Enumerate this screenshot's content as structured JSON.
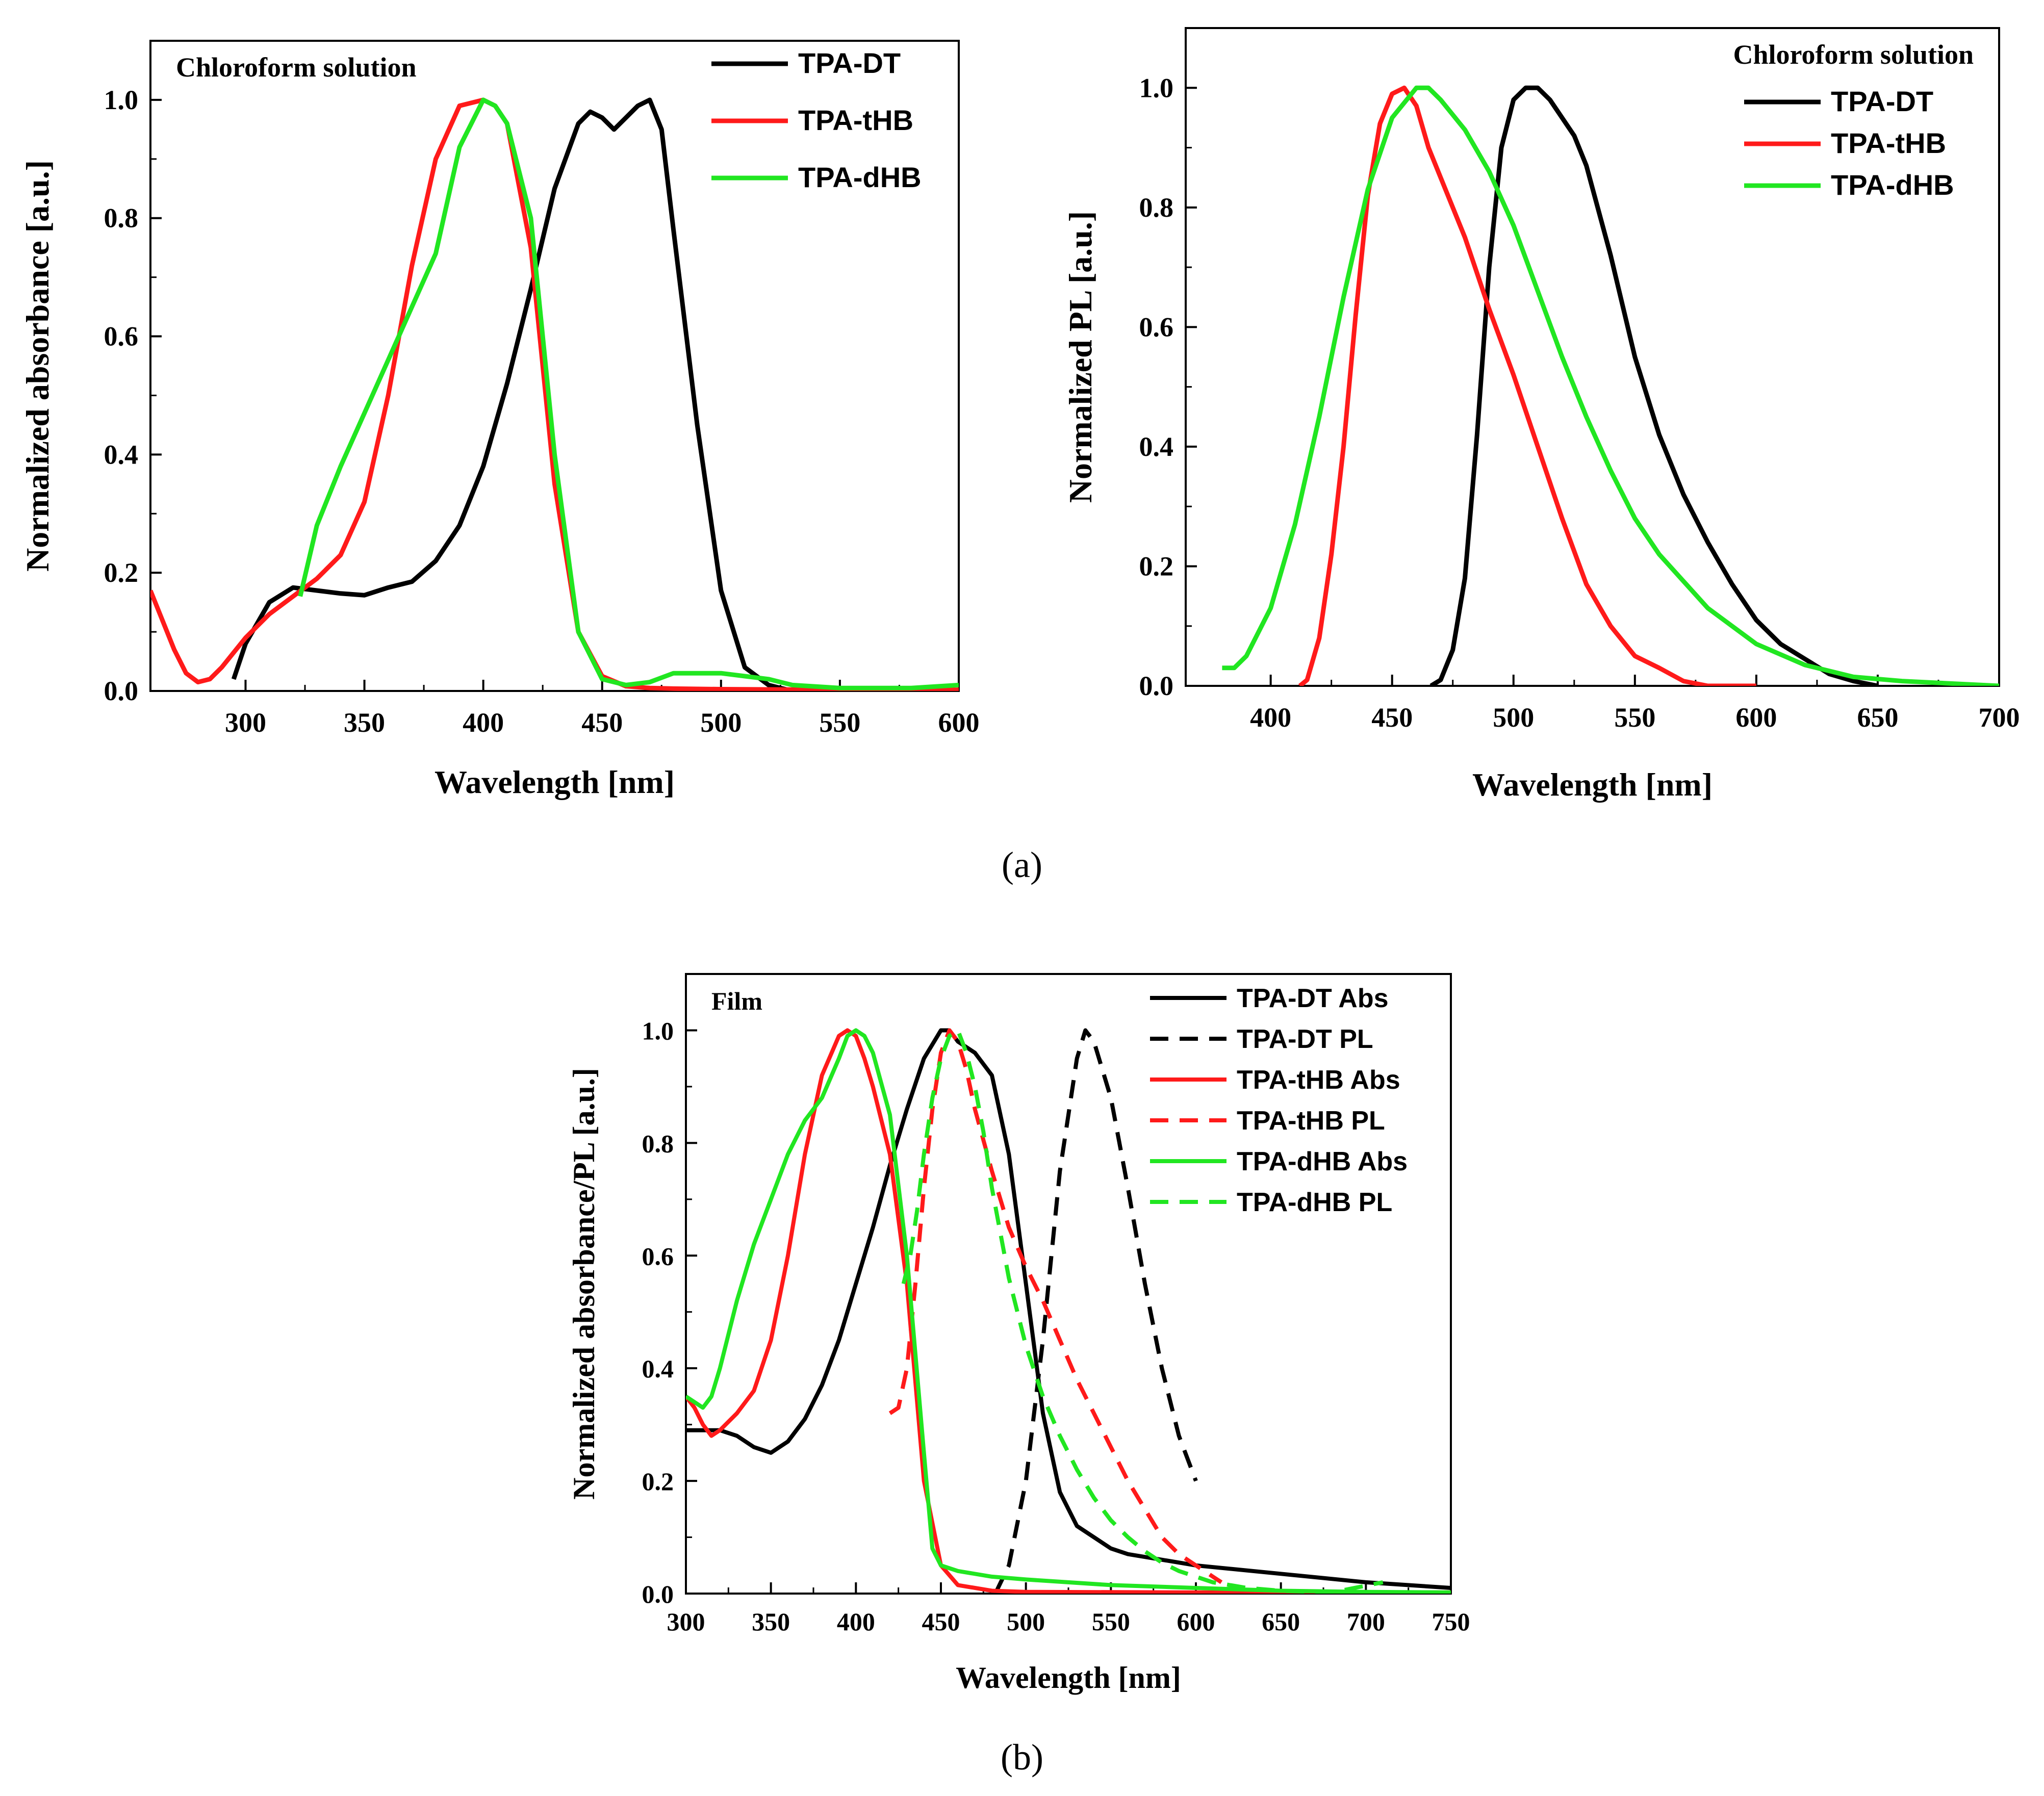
{
  "panel_labels": {
    "a": "(a)",
    "b": "(b)"
  },
  "chart_data": [
    {
      "type": "line",
      "title": "Chloroform solution",
      "xlabel": "Wavelength [nm]",
      "ylabel": "Normalized absorbance [a.u.]",
      "xlim": [
        260,
        600
      ],
      "ylim": [
        0,
        1.1
      ],
      "xticks": [
        300,
        350,
        400,
        450,
        500,
        550,
        600
      ],
      "yticks": [
        0.0,
        0.2,
        0.4,
        0.6,
        0.8,
        1.0
      ],
      "legend": "top-right",
      "series": [
        {
          "name": "TPA-DT",
          "color": "#000000",
          "dash": "solid",
          "x": [
            295,
            300,
            310,
            320,
            330,
            340,
            350,
            360,
            370,
            380,
            390,
            400,
            410,
            420,
            430,
            440,
            445,
            450,
            455,
            460,
            465,
            470,
            475,
            480,
            490,
            500,
            510,
            520,
            530
          ],
          "y": [
            0.02,
            0.08,
            0.15,
            0.175,
            0.17,
            0.165,
            0.162,
            0.175,
            0.185,
            0.22,
            0.28,
            0.38,
            0.52,
            0.68,
            0.85,
            0.96,
            0.98,
            0.97,
            0.95,
            0.97,
            0.99,
            1.0,
            0.95,
            0.78,
            0.45,
            0.17,
            0.04,
            0.01,
            0.0
          ]
        },
        {
          "name": "TPA-tHB",
          "color": "#ff1a1a",
          "dash": "solid",
          "x": [
            260,
            265,
            270,
            275,
            280,
            285,
            290,
            300,
            310,
            320,
            330,
            340,
            350,
            360,
            370,
            380,
            390,
            400,
            405,
            410,
            420,
            430,
            440,
            450,
            460,
            470,
            480,
            500,
            550,
            600
          ],
          "y": [
            0.17,
            0.12,
            0.07,
            0.03,
            0.015,
            0.02,
            0.04,
            0.09,
            0.13,
            0.16,
            0.19,
            0.23,
            0.32,
            0.5,
            0.72,
            0.9,
            0.99,
            1.0,
            0.99,
            0.96,
            0.75,
            0.35,
            0.1,
            0.025,
            0.008,
            0.005,
            0.004,
            0.003,
            0.002,
            0.002
          ]
        },
        {
          "name": "TPA-dHB",
          "color": "#21e621",
          "dash": "solid",
          "x": [
            323,
            330,
            340,
            350,
            360,
            370,
            380,
            390,
            400,
            405,
            410,
            420,
            430,
            440,
            450,
            460,
            470,
            480,
            490,
            500,
            510,
            520,
            530,
            550,
            580,
            600
          ],
          "y": [
            0.16,
            0.28,
            0.38,
            0.47,
            0.56,
            0.65,
            0.74,
            0.92,
            1.0,
            0.99,
            0.96,
            0.8,
            0.4,
            0.1,
            0.02,
            0.01,
            0.015,
            0.03,
            0.03,
            0.03,
            0.025,
            0.02,
            0.01,
            0.005,
            0.005,
            0.01
          ]
        }
      ]
    },
    {
      "type": "line",
      "title": "Chloroform solution",
      "xlabel": "Wavelength [nm]",
      "ylabel": "Normalized PL [a.u.]",
      "xlim": [
        365,
        700
      ],
      "ylim": [
        0,
        1.1
      ],
      "xticks": [
        400,
        450,
        500,
        550,
        600,
        650,
        700
      ],
      "yticks": [
        0.0,
        0.2,
        0.4,
        0.6,
        0.8,
        1.0
      ],
      "legend": "top-right",
      "series": [
        {
          "name": "TPA-DT",
          "color": "#000000",
          "dash": "solid",
          "x": [
            466,
            470,
            475,
            480,
            485,
            490,
            495,
            500,
            505,
            510,
            515,
            520,
            525,
            530,
            540,
            550,
            560,
            570,
            580,
            590,
            600,
            610,
            620,
            630,
            640,
            650
          ],
          "y": [
            0.0,
            0.01,
            0.06,
            0.18,
            0.42,
            0.7,
            0.9,
            0.98,
            1.0,
            1.0,
            0.98,
            0.95,
            0.92,
            0.87,
            0.72,
            0.55,
            0.42,
            0.32,
            0.24,
            0.17,
            0.11,
            0.07,
            0.045,
            0.02,
            0.008,
            0.0
          ]
        },
        {
          "name": "TPA-tHB",
          "color": "#ff1a1a",
          "dash": "solid",
          "x": [
            412,
            415,
            420,
            425,
            430,
            435,
            440,
            445,
            450,
            455,
            460,
            465,
            470,
            480,
            490,
            500,
            510,
            520,
            530,
            540,
            550,
            560,
            570,
            580,
            600
          ],
          "y": [
            0.0,
            0.01,
            0.08,
            0.22,
            0.4,
            0.62,
            0.82,
            0.94,
            0.99,
            1.0,
            0.97,
            0.9,
            0.85,
            0.75,
            0.63,
            0.52,
            0.4,
            0.28,
            0.17,
            0.1,
            0.05,
            0.03,
            0.008,
            0.0,
            0.0
          ]
        },
        {
          "name": "TPA-dHB",
          "color": "#21e621",
          "dash": "solid",
          "x": [
            380,
            385,
            390,
            400,
            410,
            420,
            430,
            440,
            450,
            460,
            465,
            470,
            480,
            490,
            500,
            510,
            520,
            530,
            540,
            550,
            560,
            580,
            600,
            620,
            640,
            660,
            700
          ],
          "y": [
            0.03,
            0.03,
            0.05,
            0.13,
            0.27,
            0.45,
            0.65,
            0.83,
            0.95,
            1.0,
            1.0,
            0.98,
            0.93,
            0.86,
            0.77,
            0.66,
            0.55,
            0.45,
            0.36,
            0.28,
            0.22,
            0.13,
            0.07,
            0.035,
            0.015,
            0.008,
            0.0
          ]
        }
      ]
    },
    {
      "type": "line",
      "title": "Film",
      "xlabel": "Wavelength [nm]",
      "ylabel": "Normalized absorbance/PL [a.u.]",
      "xlim": [
        300,
        750
      ],
      "ylim": [
        0,
        1.1
      ],
      "xticks": [
        300,
        350,
        400,
        450,
        500,
        550,
        600,
        650,
        700,
        750
      ],
      "yticks": [
        0.0,
        0.2,
        0.4,
        0.6,
        0.8,
        1.0
      ],
      "legend": "top-right",
      "series": [
        {
          "name": "TPA-DT Abs",
          "color": "#000000",
          "dash": "solid",
          "x": [
            300,
            310,
            320,
            330,
            340,
            350,
            360,
            370,
            380,
            390,
            400,
            410,
            420,
            430,
            440,
            450,
            455,
            460,
            470,
            480,
            490,
            500,
            510,
            520,
            530,
            540,
            550,
            560,
            580,
            600,
            650,
            700,
            750
          ],
          "y": [
            0.29,
            0.29,
            0.29,
            0.28,
            0.26,
            0.25,
            0.27,
            0.31,
            0.37,
            0.45,
            0.55,
            0.65,
            0.76,
            0.86,
            0.95,
            1.0,
            1.0,
            0.98,
            0.96,
            0.92,
            0.78,
            0.55,
            0.32,
            0.18,
            0.12,
            0.1,
            0.08,
            0.07,
            0.06,
            0.05,
            0.035,
            0.02,
            0.01
          ]
        },
        {
          "name": "TPA-DT PL",
          "color": "#000000",
          "dash": "dashed",
          "x": [
            482,
            490,
            500,
            510,
            520,
            530,
            535,
            540,
            550,
            560,
            570,
            580,
            590,
            600
          ],
          "y": [
            0.0,
            0.05,
            0.2,
            0.45,
            0.75,
            0.95,
            1.0,
            0.98,
            0.88,
            0.72,
            0.55,
            0.4,
            0.28,
            0.2
          ]
        },
        {
          "name": "TPA-tHB Abs",
          "color": "#ff1a1a",
          "dash": "solid",
          "x": [
            300,
            305,
            310,
            315,
            320,
            330,
            340,
            350,
            360,
            370,
            380,
            390,
            395,
            400,
            405,
            410,
            420,
            430,
            440,
            450,
            460,
            480,
            500,
            600,
            750
          ],
          "y": [
            0.35,
            0.33,
            0.3,
            0.28,
            0.29,
            0.32,
            0.36,
            0.45,
            0.6,
            0.78,
            0.92,
            0.99,
            1.0,
            0.99,
            0.95,
            0.9,
            0.78,
            0.55,
            0.2,
            0.05,
            0.015,
            0.005,
            0.003,
            0.002,
            0.002
          ]
        },
        {
          "name": "TPA-tHB PL",
          "color": "#ff1a1a",
          "dash": "dashed",
          "x": [
            420,
            425,
            430,
            435,
            440,
            445,
            450,
            455,
            460,
            465,
            470,
            480,
            490,
            500,
            510,
            520,
            530,
            540,
            550,
            560,
            570,
            580,
            590,
            600,
            610,
            615
          ],
          "y": [
            0.32,
            0.33,
            0.4,
            0.55,
            0.72,
            0.86,
            0.96,
            1.0,
            0.98,
            0.93,
            0.86,
            0.75,
            0.65,
            0.58,
            0.52,
            0.45,
            0.38,
            0.32,
            0.26,
            0.2,
            0.15,
            0.1,
            0.07,
            0.05,
            0.03,
            0.02
          ]
        },
        {
          "name": "TPA-dHB Abs",
          "color": "#21e621",
          "dash": "solid",
          "x": [
            300,
            305,
            310,
            315,
            320,
            330,
            340,
            350,
            360,
            370,
            380,
            390,
            395,
            400,
            405,
            410,
            420,
            430,
            440,
            445,
            450,
            460,
            480,
            500,
            550,
            600,
            650,
            700,
            750
          ],
          "y": [
            0.35,
            0.34,
            0.33,
            0.35,
            0.4,
            0.52,
            0.62,
            0.7,
            0.78,
            0.84,
            0.88,
            0.95,
            0.99,
            1.0,
            0.99,
            0.96,
            0.85,
            0.6,
            0.25,
            0.08,
            0.05,
            0.04,
            0.03,
            0.025,
            0.015,
            0.01,
            0.005,
            0.003,
            0.002
          ]
        },
        {
          "name": "TPA-dHB PL",
          "color": "#21e621",
          "dash": "dashed",
          "x": [
            428,
            432,
            436,
            440,
            445,
            450,
            455,
            460,
            465,
            470,
            475,
            480,
            490,
            500,
            510,
            520,
            530,
            540,
            550,
            560,
            570,
            580,
            590,
            600,
            610,
            620,
            630,
            650,
            680,
            710
          ],
          "y": [
            0.55,
            0.6,
            0.68,
            0.78,
            0.88,
            0.95,
            0.99,
            1.0,
            0.96,
            0.9,
            0.82,
            0.72,
            0.56,
            0.44,
            0.35,
            0.28,
            0.22,
            0.17,
            0.13,
            0.1,
            0.075,
            0.055,
            0.04,
            0.03,
            0.02,
            0.015,
            0.01,
            0.005,
            0.002,
            0.02
          ]
        }
      ]
    }
  ]
}
